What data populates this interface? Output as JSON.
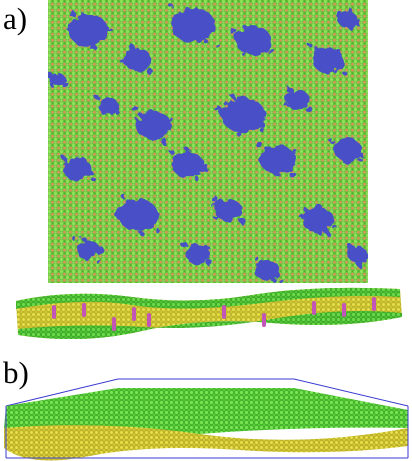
{
  "figure": {
    "panel_a": {
      "label": "a)"
    },
    "panel_b": {
      "label": "b)"
    }
  },
  "colors": {
    "green": "#5fd23a",
    "orange": "#d99a55",
    "blue": "#4a55c4",
    "yellow": "#d8d23a",
    "magenta": "#c455b8",
    "frame": "#3a3ad0"
  }
}
